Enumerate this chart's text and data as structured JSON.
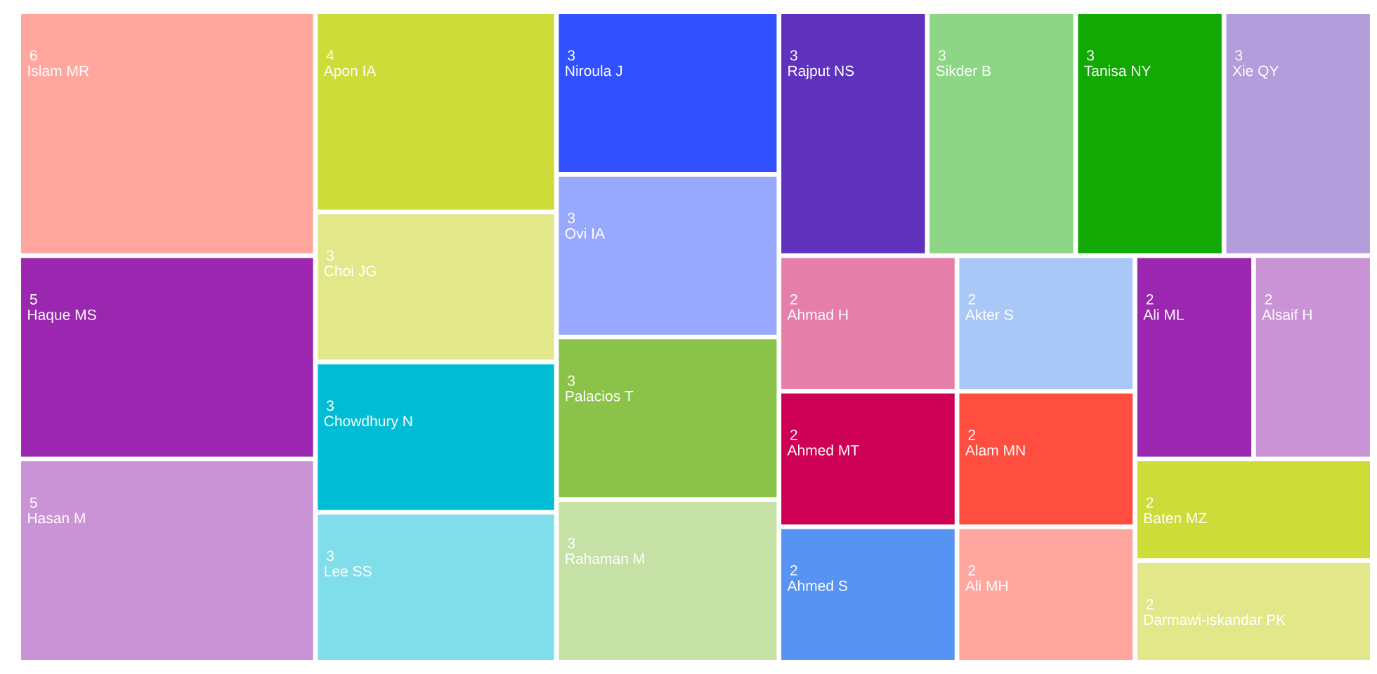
{
  "chart_data": {
    "type": "other",
    "categories": [
      "Islam MR",
      "Haque MS",
      "Hasan M",
      "Apon IA",
      "Choi JG",
      "Chowdhury N",
      "Lee SS",
      "Niroula J",
      "Ovi IA",
      "Palacios T",
      "Rahaman M",
      "Rajput NS",
      "Sikder B",
      "Tanisa NY",
      "Xie QY",
      "Ahmad H",
      "Ahmed MT",
      "Ahmed S",
      "Akter S",
      "Alam MN",
      "Ali MH",
      "Ali ML",
      "Alsaif H",
      "Baten MZ",
      "Darmawi-iskandar PK"
    ],
    "values": [
      6,
      5,
      5,
      4,
      3,
      3,
      3,
      3,
      3,
      3,
      3,
      3,
      3,
      3,
      3,
      2,
      2,
      2,
      2,
      2,
      2,
      2,
      2,
      2,
      2
    ],
    "colors": [
      "#ffa69e",
      "#9b27b0",
      "#ca93d6",
      "#cddc39",
      "#e2e88a",
      "#00bcd4",
      "#80deea",
      "#3150ff",
      "#98a8fd",
      "#8bc34a",
      "#c5e1a5",
      "#5e32bd",
      "#8cd685",
      "#12a905",
      "#b39ddb",
      "#e67eaa",
      "#cd0055",
      "#5693f3",
      "#a9c8f8",
      "#ff4e40",
      "#ffa69e",
      "#9b27b0",
      "#ca93d6",
      "#cddc39",
      "#e2e88a"
    ],
    "data_labels": true
  }
}
